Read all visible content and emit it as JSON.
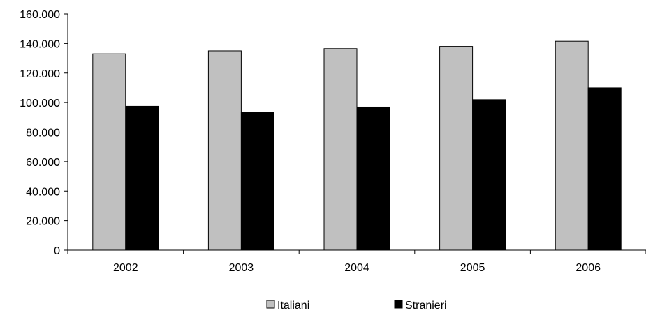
{
  "chart_data": {
    "type": "bar",
    "title": "",
    "xlabel": "",
    "ylabel": "",
    "categories": [
      "2002",
      "2003",
      "2004",
      "2005",
      "2006"
    ],
    "series": [
      {
        "name": "Italiani",
        "color": "#c0c0c0",
        "values": [
          133000,
          135000,
          136500,
          138000,
          141500
        ]
      },
      {
        "name": "Stranieri",
        "color": "#000000",
        "values": [
          97500,
          93500,
          97000,
          102000,
          110000
        ]
      }
    ],
    "ylim": [
      0,
      160000
    ],
    "ytick_values": [
      0,
      20000,
      40000,
      60000,
      80000,
      100000,
      120000,
      140000,
      160000
    ],
    "ytick_labels": [
      "0",
      "20.000",
      "40.000",
      "60.000",
      "80.000",
      "100.000",
      "120.000",
      "140.000",
      "160.000"
    ],
    "grid": false,
    "legend_position": "bottom"
  }
}
